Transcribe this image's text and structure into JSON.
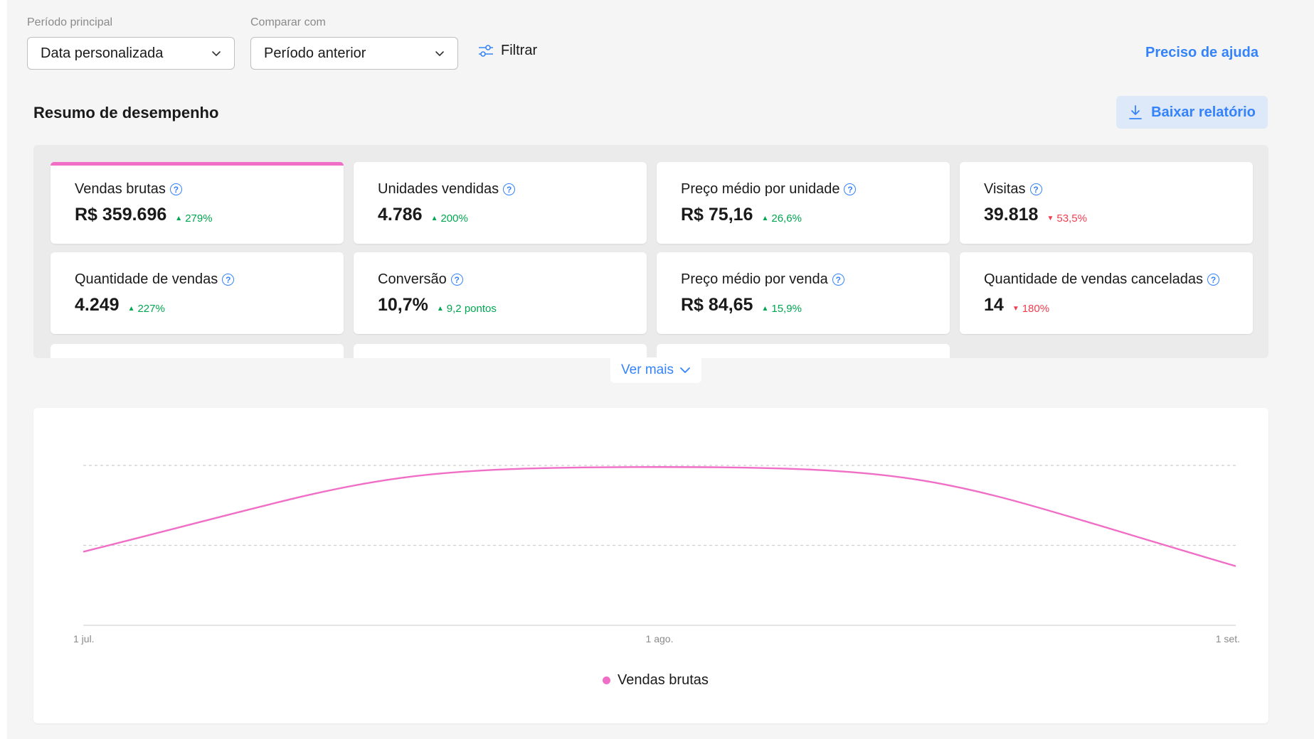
{
  "filters": {
    "main_period_label": "Período principal",
    "main_period_value": "Data personalizada",
    "compare_label": "Comparar com",
    "compare_value": "Período anterior",
    "filter_label": "Filtrar",
    "help_link": "Preciso de ajuda"
  },
  "section": {
    "title": "Resumo de desempenho",
    "download_label": "Baixar relatório"
  },
  "metrics": [
    {
      "label": "Vendas brutas",
      "value": "R$ 359.696",
      "change": "279%",
      "direction": "up",
      "active": true
    },
    {
      "label": "Unidades vendidas",
      "value": "4.786",
      "change": "200%",
      "direction": "up"
    },
    {
      "label": "Preço médio por unidade",
      "value": "R$ 75,16",
      "change": "26,6%",
      "direction": "up"
    },
    {
      "label": "Visitas",
      "value": "39.818",
      "change": "53,5%",
      "direction": "down"
    },
    {
      "label": "Quantidade de vendas",
      "value": "4.249",
      "change": "227%",
      "direction": "up"
    },
    {
      "label": "Conversão",
      "value": "10,7%",
      "change": "9,2 pontos",
      "direction": "up"
    },
    {
      "label": "Preço médio por venda",
      "value": "R$ 84,65",
      "change": "15,9%",
      "direction": "up"
    },
    {
      "label": "Quantidade de vendas canceladas",
      "value": "14",
      "change": "180%",
      "direction": "down"
    }
  ],
  "see_more_label": "Ver mais",
  "colors": {
    "accent": "#3483fa",
    "series": "#f06ec6",
    "up": "#00a650",
    "down": "#f23d4f"
  },
  "icons": {
    "help": "question-circle-icon",
    "filter": "sliders-icon",
    "download": "download-icon",
    "chevron": "chevron-down-icon"
  },
  "chart_data": {
    "type": "line",
    "x_ticks": [
      "1 jul.",
      "1 ago.",
      "1 set."
    ],
    "series": [
      {
        "name": "Vendas brutas",
        "color": "#f06ec6",
        "x_days": [
          0,
          31,
          62
        ],
        "values": [
          0.46,
          0.99,
          0.37
        ]
      }
    ],
    "grid": "horizontal-dashed",
    "legend_position": "bottom-center"
  }
}
